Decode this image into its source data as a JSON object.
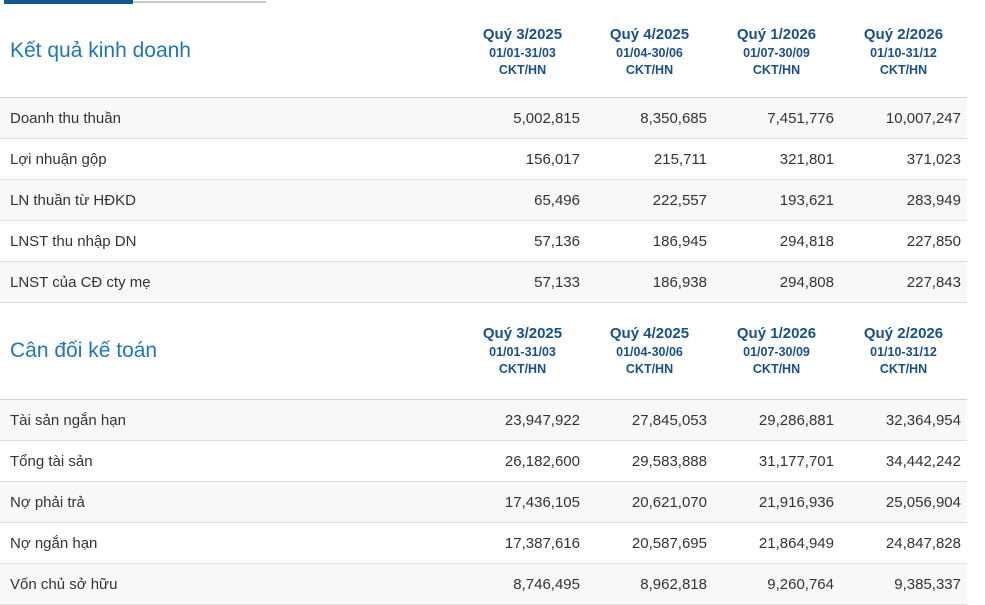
{
  "columns": [
    {
      "quarter": "Quý 3/2025",
      "period": "01/01-31/03",
      "report_type": "CKT/HN"
    },
    {
      "quarter": "Quý 4/2025",
      "period": "01/04-30/06",
      "report_type": "CKT/HN"
    },
    {
      "quarter": "Quý 1/2026",
      "period": "01/07-30/09",
      "report_type": "CKT/HN"
    },
    {
      "quarter": "Quý 2/2026",
      "period": "01/10-31/12",
      "report_type": "CKT/HN"
    }
  ],
  "sections": [
    {
      "title": "Kết quả kinh doanh",
      "rows": [
        {
          "label": "Doanh thu thuần",
          "values": [
            "5,002,815",
            "8,350,685",
            "7,451,776",
            "10,007,247"
          ]
        },
        {
          "label": "Lợi nhuận gộp",
          "values": [
            "156,017",
            "215,711",
            "321,801",
            "371,023"
          ]
        },
        {
          "label": "LN thuần từ HĐKD",
          "values": [
            "65,496",
            "222,557",
            "193,621",
            "283,949"
          ]
        },
        {
          "label": "LNST thu nhập DN",
          "values": [
            "57,136",
            "186,945",
            "294,818",
            "227,850"
          ]
        },
        {
          "label": "LNST của CĐ cty mẹ",
          "values": [
            "57,133",
            "186,938",
            "294,808",
            "227,843"
          ]
        }
      ]
    },
    {
      "title": "Cân đối kế toán",
      "rows": [
        {
          "label": "Tài sản ngắn hạn",
          "values": [
            "23,947,922",
            "27,845,053",
            "29,286,881",
            "32,364,954"
          ]
        },
        {
          "label": "Tổng tài sản",
          "values": [
            "26,182,600",
            "29,583,888",
            "31,177,701",
            "34,442,242"
          ]
        },
        {
          "label": "Nợ phải trả",
          "values": [
            "17,436,105",
            "20,621,070",
            "21,916,936",
            "25,056,904"
          ]
        },
        {
          "label": "Nợ ngắn hạn",
          "values": [
            "17,387,616",
            "20,587,695",
            "21,864,949",
            "24,847,828"
          ]
        },
        {
          "label": "Vốn chủ sở hữu",
          "values": [
            "8,746,495",
            "8,962,818",
            "9,260,764",
            "9,385,337"
          ]
        }
      ]
    }
  ],
  "colors": {
    "section_title": "#1c76bc",
    "column_header": "#17508f",
    "tab_active": "#10578f",
    "tab_inactive": "#c9c9c9",
    "row_stripe": "#f8f8f8",
    "row_border": "#dddddd",
    "text": "#333333"
  }
}
